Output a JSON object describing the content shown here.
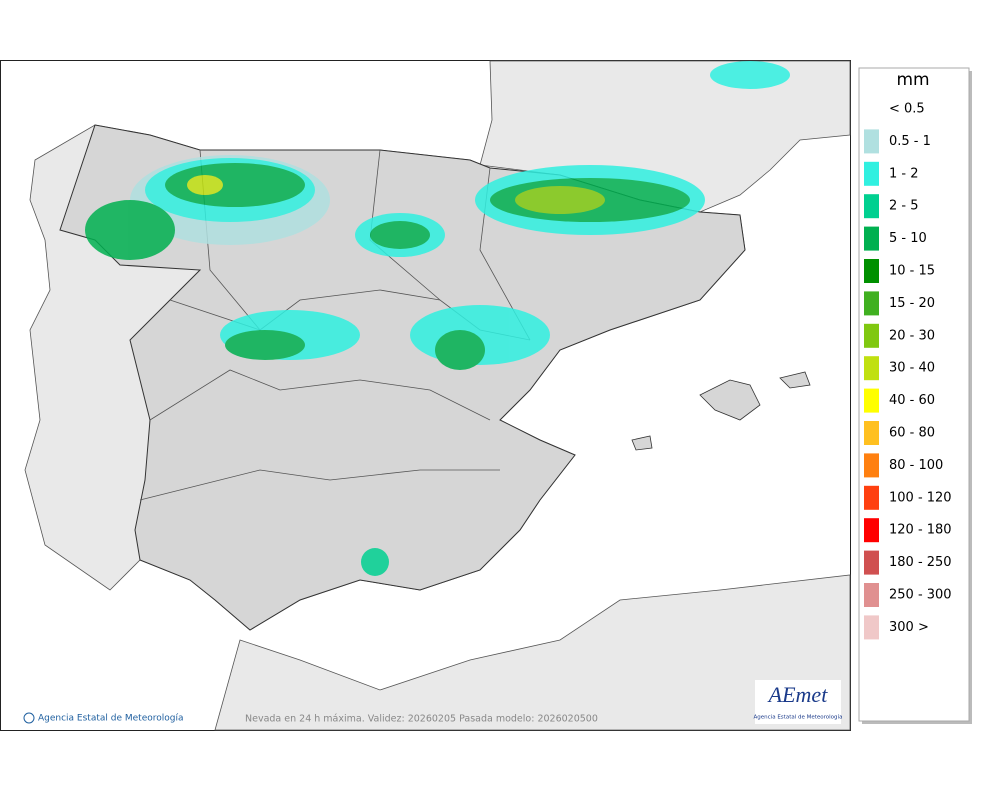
{
  "map": {
    "footer_credit": "Agencia Estatal de Meteorología",
    "footer_caption": "Nevada en 24 h máxima. Validez: 20260205 Pasada modelo: 2026020500",
    "logo": {
      "name": "AEmet",
      "subtitle": "Agencia Estatal de Meteorología"
    }
  },
  "legend": {
    "title": "mm",
    "items": [
      {
        "label": "< 0.5",
        "color": null
      },
      {
        "label": "0.5 - 1",
        "color": "#b0e0e0"
      },
      {
        "label": "1 - 2",
        "color": "#30f0e0"
      },
      {
        "label": "2 - 5",
        "color": "#00d090"
      },
      {
        "label": "5 - 10",
        "color": "#00b050"
      },
      {
        "label": "10 - 15",
        "color": "#009000"
      },
      {
        "label": "15 - 20",
        "color": "#40b020"
      },
      {
        "label": "20 - 30",
        "color": "#80c810"
      },
      {
        "label": "30 - 40",
        "color": "#c0e010"
      },
      {
        "label": "40 - 60",
        "color": "#ffff00"
      },
      {
        "label": "60 - 80",
        "color": "#ffc020"
      },
      {
        "label": "80 - 100",
        "color": "#ff8010"
      },
      {
        "label": "100 - 120",
        "color": "#ff4010"
      },
      {
        "label": "120 - 180",
        "color": "#ff0000"
      },
      {
        "label": "180 - 250",
        "color": "#d05050"
      },
      {
        "label": "250 - 300",
        "color": "#e09090"
      },
      {
        "label": "300 >",
        "color": "#f0c8c8"
      }
    ]
  }
}
